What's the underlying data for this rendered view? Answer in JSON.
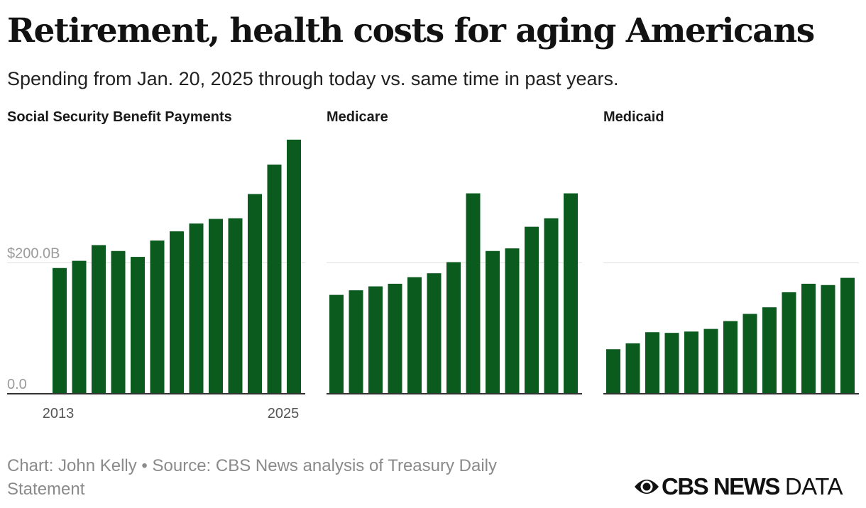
{
  "header": {
    "title": "Retirement, health costs for aging Americans",
    "subtitle": "Spending from Jan. 20, 2025 through today vs. same time in past years."
  },
  "footer": {
    "source": "Chart: John Kelly • Source: CBS News analysis of Treasury Daily Statement",
    "logo_text": "CBS NEWS",
    "logo_suffix": "DATA"
  },
  "colors": {
    "bar": "#0b5a1e",
    "grid": "#dddddd",
    "axis": "#333333",
    "tick_label": "#9a9a9a"
  },
  "chart_data": [
    {
      "type": "bar",
      "title": "Social Security Benefit Payments",
      "x": [
        2013,
        2014,
        2015,
        2016,
        2017,
        2018,
        2019,
        2020,
        2021,
        2022,
        2023,
        2024,
        2025
      ],
      "values": [
        192,
        203,
        227,
        218,
        209,
        234,
        248,
        260,
        267,
        268,
        305,
        350,
        388
      ],
      "x_tick_labels": [
        "2013",
        "2025"
      ],
      "y_ticks": [
        0,
        200
      ],
      "y_tick_labels": [
        "0.0",
        "$200.0B"
      ],
      "ylim": [
        0,
        390
      ],
      "grid": true
    },
    {
      "type": "bar",
      "title": "Medicare",
      "x": [
        2013,
        2014,
        2015,
        2016,
        2017,
        2018,
        2019,
        2020,
        2021,
        2022,
        2023,
        2024,
        2025
      ],
      "values": [
        151,
        158,
        164,
        168,
        178,
        184,
        201,
        306,
        218,
        222,
        255,
        268,
        306
      ],
      "ylim": [
        0,
        390
      ],
      "grid": true
    },
    {
      "type": "bar",
      "title": "Medicaid",
      "x": [
        2013,
        2014,
        2015,
        2016,
        2017,
        2018,
        2019,
        2020,
        2021,
        2022,
        2023,
        2024,
        2025
      ],
      "values": [
        68,
        77,
        94,
        93,
        95,
        99,
        111,
        122,
        132,
        155,
        168,
        166,
        177
      ],
      "ylim": [
        0,
        390
      ],
      "grid": true
    }
  ]
}
